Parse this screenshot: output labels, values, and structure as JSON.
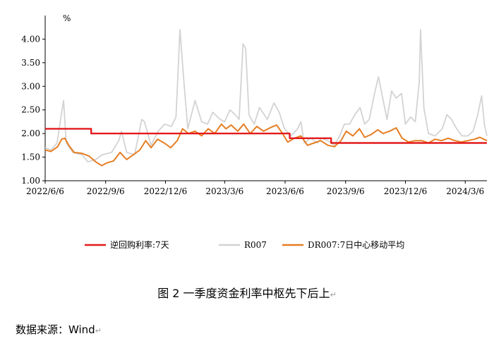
{
  "chart_data": {
    "type": "line",
    "unit_label": "%",
    "y_ticks": [
      "1.00",
      "1.50",
      "2.00",
      "2.50",
      "3.00",
      "3.50",
      "4.00"
    ],
    "ylim": [
      1.0,
      4.2
    ],
    "x_ticks": [
      {
        "date": "2022-06-06",
        "label": "2022/6/6"
      },
      {
        "date": "2022-09-06",
        "label": "2022/9/6"
      },
      {
        "date": "2022-12-06",
        "label": "2022/12/6"
      },
      {
        "date": "2023-03-06",
        "label": "2023/3/6"
      },
      {
        "date": "2023-06-06",
        "label": "2023/6/6"
      },
      {
        "date": "2023-09-06",
        "label": "2023/9/6"
      },
      {
        "date": "2023-12-06",
        "label": "2023/12/6"
      },
      {
        "date": "2024-03-06",
        "label": "2024/3/6"
      }
    ],
    "xlim": [
      "2022-06-06",
      "2024-04-08"
    ],
    "legend_position": "bottom",
    "series": [
      {
        "name": "逆回购利率:7天",
        "color": "#e31a1c",
        "kind": "step",
        "points": [
          [
            "2022-06-06",
            2.1
          ],
          [
            "2022-08-15",
            2.1
          ],
          [
            "2022-08-15",
            2.0
          ],
          [
            "2023-06-13",
            2.0
          ],
          [
            "2023-06-13",
            1.9
          ],
          [
            "2023-08-15",
            1.9
          ],
          [
            "2023-08-15",
            1.8
          ],
          [
            "2024-04-08",
            1.8
          ]
        ]
      },
      {
        "name": "R007",
        "color": "#d3d3d3",
        "kind": "line",
        "points": [
          [
            "2022-06-06",
            1.7
          ],
          [
            "2022-06-15",
            1.65
          ],
          [
            "2022-06-24",
            1.8
          ],
          [
            "2022-06-30",
            2.35
          ],
          [
            "2022-07-04",
            2.7
          ],
          [
            "2022-07-08",
            1.8
          ],
          [
            "2022-07-18",
            1.6
          ],
          [
            "2022-08-01",
            1.55
          ],
          [
            "2022-08-10",
            1.4
          ],
          [
            "2022-08-22",
            1.45
          ],
          [
            "2022-09-01",
            1.55
          ],
          [
            "2022-09-15",
            1.6
          ],
          [
            "2022-09-26",
            1.85
          ],
          [
            "2022-09-30",
            2.05
          ],
          [
            "2022-10-08",
            1.6
          ],
          [
            "2022-10-20",
            1.55
          ],
          [
            "2022-10-31",
            2.3
          ],
          [
            "2022-11-04",
            2.25
          ],
          [
            "2022-11-14",
            1.75
          ],
          [
            "2022-11-25",
            2.05
          ],
          [
            "2022-12-05",
            2.2
          ],
          [
            "2022-12-15",
            2.15
          ],
          [
            "2022-12-22",
            2.35
          ],
          [
            "2022-12-28",
            4.2
          ],
          [
            "2023-01-03",
            3.1
          ],
          [
            "2023-01-09",
            2.1
          ],
          [
            "2023-01-20",
            2.7
          ],
          [
            "2023-01-30",
            2.25
          ],
          [
            "2023-02-08",
            2.2
          ],
          [
            "2023-02-16",
            2.45
          ],
          [
            "2023-02-27",
            2.3
          ],
          [
            "2023-03-06",
            2.25
          ],
          [
            "2023-03-14",
            2.5
          ],
          [
            "2023-03-22",
            2.4
          ],
          [
            "2023-03-28",
            2.3
          ],
          [
            "2023-04-03",
            3.9
          ],
          [
            "2023-04-07",
            3.8
          ],
          [
            "2023-04-12",
            2.4
          ],
          [
            "2023-04-20",
            2.2
          ],
          [
            "2023-04-28",
            2.55
          ],
          [
            "2023-05-10",
            2.3
          ],
          [
            "2023-05-20",
            2.65
          ],
          [
            "2023-05-28",
            2.45
          ],
          [
            "2023-06-05",
            2.1
          ],
          [
            "2023-06-15",
            1.95
          ],
          [
            "2023-06-25",
            2.1
          ],
          [
            "2023-06-30",
            2.25
          ],
          [
            "2023-07-05",
            1.8
          ],
          [
            "2023-07-15",
            1.9
          ],
          [
            "2023-07-25",
            1.8
          ],
          [
            "2023-07-31",
            1.9
          ],
          [
            "2023-08-10",
            1.85
          ],
          [
            "2023-08-20",
            1.75
          ],
          [
            "2023-08-28",
            1.95
          ],
          [
            "2023-09-04",
            2.2
          ],
          [
            "2023-09-12",
            2.2
          ],
          [
            "2023-09-20",
            2.4
          ],
          [
            "2023-09-28",
            2.55
          ],
          [
            "2023-10-05",
            2.2
          ],
          [
            "2023-10-12",
            2.3
          ],
          [
            "2023-10-20",
            2.85
          ],
          [
            "2023-10-26",
            3.2
          ],
          [
            "2023-10-31",
            2.85
          ],
          [
            "2023-11-08",
            2.3
          ],
          [
            "2023-11-15",
            2.9
          ],
          [
            "2023-11-22",
            2.75
          ],
          [
            "2023-11-30",
            2.85
          ],
          [
            "2023-12-06",
            2.2
          ],
          [
            "2023-12-14",
            2.35
          ],
          [
            "2023-12-21",
            2.25
          ],
          [
            "2023-12-27",
            3.1
          ],
          [
            "2023-12-29",
            4.2
          ],
          [
            "2024-01-03",
            2.55
          ],
          [
            "2024-01-10",
            2.0
          ],
          [
            "2024-01-20",
            1.95
          ],
          [
            "2024-01-31",
            2.1
          ],
          [
            "2024-02-07",
            2.4
          ],
          [
            "2024-02-14",
            2.3
          ],
          [
            "2024-02-22",
            2.1
          ],
          [
            "2024-03-01",
            1.95
          ],
          [
            "2024-03-10",
            1.95
          ],
          [
            "2024-03-18",
            2.05
          ],
          [
            "2024-03-25",
            2.4
          ],
          [
            "2024-03-31",
            2.8
          ],
          [
            "2024-04-04",
            2.2
          ],
          [
            "2024-04-08",
            1.95
          ]
        ]
      },
      {
        "name": "DR007:7日中心移动平均",
        "color": "#e67e22",
        "kind": "line",
        "points": [
          [
            "2022-06-06",
            1.65
          ],
          [
            "2022-06-15",
            1.62
          ],
          [
            "2022-06-25",
            1.72
          ],
          [
            "2022-07-01",
            1.88
          ],
          [
            "2022-07-06",
            1.9
          ],
          [
            "2022-07-12",
            1.75
          ],
          [
            "2022-07-20",
            1.6
          ],
          [
            "2022-08-01",
            1.58
          ],
          [
            "2022-08-12",
            1.52
          ],
          [
            "2022-08-22",
            1.4
          ],
          [
            "2022-08-31",
            1.32
          ],
          [
            "2022-09-08",
            1.38
          ],
          [
            "2022-09-18",
            1.42
          ],
          [
            "2022-09-28",
            1.6
          ],
          [
            "2022-10-08",
            1.45
          ],
          [
            "2022-10-18",
            1.55
          ],
          [
            "2022-10-28",
            1.65
          ],
          [
            "2022-11-06",
            1.85
          ],
          [
            "2022-11-14",
            1.7
          ],
          [
            "2022-11-24",
            1.88
          ],
          [
            "2022-12-04",
            1.8
          ],
          [
            "2022-12-14",
            1.7
          ],
          [
            "2022-12-24",
            1.85
          ],
          [
            "2023-01-01",
            2.1
          ],
          [
            "2023-01-10",
            2.0
          ],
          [
            "2023-01-20",
            2.05
          ],
          [
            "2023-01-30",
            1.95
          ],
          [
            "2023-02-09",
            2.1
          ],
          [
            "2023-02-19",
            2.0
          ],
          [
            "2023-03-01",
            2.2
          ],
          [
            "2023-03-08",
            2.1
          ],
          [
            "2023-03-16",
            2.18
          ],
          [
            "2023-03-26",
            2.05
          ],
          [
            "2023-04-04",
            2.2
          ],
          [
            "2023-04-14",
            2.0
          ],
          [
            "2023-04-24",
            2.15
          ],
          [
            "2023-05-04",
            2.05
          ],
          [
            "2023-05-14",
            2.12
          ],
          [
            "2023-05-24",
            2.18
          ],
          [
            "2023-06-02",
            2.0
          ],
          [
            "2023-06-10",
            1.82
          ],
          [
            "2023-06-20",
            1.9
          ],
          [
            "2023-06-30",
            1.95
          ],
          [
            "2023-07-10",
            1.75
          ],
          [
            "2023-07-20",
            1.8
          ],
          [
            "2023-07-30",
            1.85
          ],
          [
            "2023-08-10",
            1.75
          ],
          [
            "2023-08-20",
            1.72
          ],
          [
            "2023-08-30",
            1.85
          ],
          [
            "2023-09-07",
            2.05
          ],
          [
            "2023-09-17",
            1.95
          ],
          [
            "2023-09-27",
            2.1
          ],
          [
            "2023-10-05",
            1.92
          ],
          [
            "2023-10-15",
            1.98
          ],
          [
            "2023-10-25",
            2.08
          ],
          [
            "2023-11-02",
            2.0
          ],
          [
            "2023-11-12",
            2.05
          ],
          [
            "2023-11-22",
            2.12
          ],
          [
            "2023-12-01",
            1.9
          ],
          [
            "2023-12-11",
            1.82
          ],
          [
            "2023-12-21",
            1.85
          ],
          [
            "2023-12-31",
            1.85
          ],
          [
            "2024-01-10",
            1.8
          ],
          [
            "2024-01-20",
            1.88
          ],
          [
            "2024-01-30",
            1.85
          ],
          [
            "2024-02-09",
            1.9
          ],
          [
            "2024-02-19",
            1.85
          ],
          [
            "2024-02-29",
            1.82
          ],
          [
            "2024-03-10",
            1.85
          ],
          [
            "2024-03-20",
            1.88
          ],
          [
            "2024-03-28",
            1.92
          ],
          [
            "2024-04-08",
            1.85
          ]
        ]
      }
    ]
  },
  "caption": "图 2 一季度资金利率中枢先下后上",
  "source": "数据来源：Wind"
}
